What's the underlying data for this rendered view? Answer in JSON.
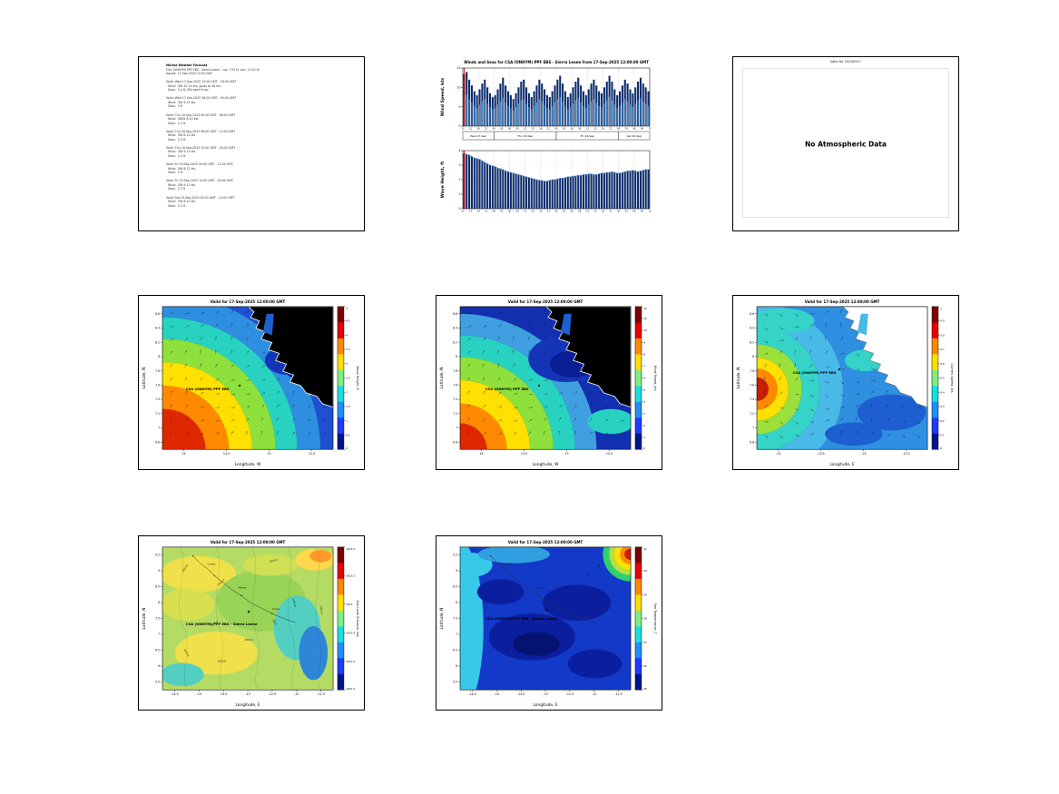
{
  "report": {
    "background": "#ffffff"
  },
  "colors": {
    "now_line": "#cc0000",
    "bar_dark": "#0a2a6b",
    "bar_light": "#4f9bd8",
    "wave_top": "#5b9bd5",
    "land": "#000000"
  },
  "forecast_text": {
    "lines": [
      "Marine Weather Forecast",
      "CSA (ONHYM) PPF EBS - Sierra Leone   Lat: 7.55 N  Lon: 13.10 W",
      "Issued: 17-Sep-2025 12:00 GMT",
      "",
      "Valid: Wed 17-Sep-2025 12:00 GMT - 18:00 GMT",
      "  Wind:  SW 10-14 kts, gusts to 18 kts",
      "  Seas:  3-4 ft, SW swell 9 sec",
      "",
      "Valid: Wed 17-Sep-2025 18:00 GMT - 00:00 GMT",
      "  Wind:  SW 9-13 kts",
      "  Seas:  3 ft",
      "",
      "Valid: Thu 18-Sep-2025 00:00 GMT - 06:00 GMT",
      "  Wind:  WSW 8-12 kts",
      "  Seas:  2-3 ft",
      "",
      "Valid: Thu 18-Sep-2025 06:00 GMT - 12:00 GMT",
      "  Wind:  SW 8-12 kts",
      "  Seas:  2-3 ft",
      "",
      "Valid: Thu 18-Sep-2025 12:00 GMT - 00:00 GMT",
      "  Wind:  SW 9-13 kts",
      "  Seas:  2-3 ft",
      "",
      "Valid: Fri 19-Sep-2025 00:00 GMT - 12:00 GMT",
      "  Wind:  SW 8-12 kts",
      "  Seas:  2 ft",
      "",
      "Valid: Fri 19-Sep-2025 12:00 GMT - 00:00 GMT",
      "  Wind:  SW 9-13 kts",
      "  Seas:  2-3 ft",
      "",
      "Valid: Sat 20-Sep-2025 00:00 GMT - 12:00 GMT",
      "  Wind:  SW 8-12 kts",
      "  Seas:  2-3 ft"
    ]
  },
  "no_data_panel": {
    "valid_label": "Valid for 20250917",
    "message": "No Atmospheric Data"
  },
  "chart_data": [
    {
      "id": "wind_speed_series",
      "type": "bar",
      "title": "Winds and Seas for CSA (ONHYM) PPF EBS - Sierra Leone from 17-Sep-2025 12:00:00 GMT",
      "ylabel": "Wind Speed, kts",
      "ylim": [
        0,
        15
      ],
      "yticks": [
        0,
        5,
        10,
        15
      ],
      "day_labels": [
        "Wed 17-Sep",
        "Thu 18-Sep",
        "Fri 19-Sep",
        "Sat 20-Sep"
      ],
      "xticklabels": [
        "12",
        "15",
        "18",
        "21",
        "00",
        "03",
        "06",
        "09",
        "12",
        "15",
        "18",
        "21",
        "00",
        "03",
        "06",
        "09",
        "12",
        "15",
        "18",
        "21",
        "00",
        "03",
        "06",
        "09",
        "12"
      ],
      "values": [
        13.5,
        14,
        12,
        10.5,
        9,
        8,
        9.5,
        11,
        12,
        10,
        8.5,
        7.5,
        8,
        9.5,
        11,
        12.5,
        10.5,
        9,
        8,
        7,
        8.5,
        10,
        11.5,
        12,
        10,
        8.5,
        7.5,
        9,
        10.5,
        12,
        11,
        9.5,
        8,
        7.5,
        9,
        10.5,
        12,
        13,
        11,
        9,
        7.5,
        8.5,
        10,
        11.5,
        12.5,
        10.5,
        9,
        8,
        9.5,
        11,
        12,
        10.5,
        9,
        8.5,
        10,
        11.5,
        13,
        11.5,
        9.5,
        8,
        9,
        10.5,
        12,
        11,
        9.5,
        8.5,
        10,
        11.5,
        12.5,
        11,
        10,
        9
      ]
    },
    {
      "id": "wave_height_series",
      "type": "bar",
      "ylabel": "Wave Height, ft",
      "ylim": [
        0,
        4
      ],
      "yticks": [
        0,
        1,
        2,
        3,
        4
      ],
      "values": [
        3.8,
        3.75,
        3.7,
        3.6,
        3.5,
        3.45,
        3.4,
        3.3,
        3.2,
        3.1,
        3.0,
        2.95,
        2.9,
        2.8,
        2.75,
        2.7,
        2.6,
        2.55,
        2.5,
        2.45,
        2.4,
        2.35,
        2.3,
        2.25,
        2.2,
        2.15,
        2.1,
        2.05,
        2.0,
        1.95,
        1.95,
        1.9,
        1.9,
        1.95,
        2.0,
        2.0,
        2.05,
        2.1,
        2.1,
        2.15,
        2.2,
        2.2,
        2.25,
        2.25,
        2.3,
        2.3,
        2.35,
        2.35,
        2.4,
        2.4,
        2.35,
        2.35,
        2.4,
        2.45,
        2.45,
        2.5,
        2.5,
        2.55,
        2.5,
        2.45,
        2.45,
        2.5,
        2.55,
        2.6,
        2.6,
        2.65,
        2.6,
        2.55,
        2.6,
        2.65,
        2.7,
        2.7
      ]
    },
    {
      "id": "wave_height_map",
      "type": "heatmap",
      "title": "Valid for 17-Sep-2025 12:00:00 GMT",
      "xlabel": "Longitude, W",
      "ylabel": "Latitude, N",
      "xticks": [
        "14",
        "13.5",
        "13",
        "12.5"
      ],
      "yticks": [
        "6.8",
        "7",
        "7.2",
        "7.4",
        "7.6",
        "7.8",
        "8",
        "8.2",
        "8.4",
        "8.6"
      ],
      "zlabel": "Wave Height, ft",
      "zrange": [
        0,
        5
      ],
      "colorbar_ticks": [
        "0",
        "0.5",
        "1",
        "1.5",
        "2",
        "2.5",
        "3",
        "3.5",
        "4",
        "4.5",
        "5"
      ],
      "station": "CSA (ONHYM) PPF EBS",
      "pattern": "max ~4.5 ft in the southwest, decreasing to under 1 ft at the coast (northeast)"
    },
    {
      "id": "wind_speed_map",
      "type": "heatmap",
      "title": "Valid for 17-Sep-2025 12:00:00 GMT",
      "xlabel": "Longitude, W",
      "ylabel": "Latitude, N",
      "xticks": [
        "14",
        "13.5",
        "13",
        "12.5"
      ],
      "yticks": [
        "6.8",
        "7",
        "7.2",
        "7.4",
        "7.6",
        "7.8",
        "8",
        "8.2",
        "8.4",
        "8.6"
      ],
      "zlabel": "Wind Speed, kts",
      "zrange": [
        0,
        12
      ],
      "colorbar_ticks": [
        "0",
        "1",
        "2",
        "3",
        "4",
        "5",
        "6",
        "7",
        "8",
        "9",
        "10",
        "11",
        "12"
      ],
      "station": "CSA (ONHYM) PPF EBS",
      "pattern": "strongest winds ~11 kts offshore southwest, light ~2 kts near the coast"
    },
    {
      "id": "current_speed_map",
      "type": "heatmap",
      "title": "Valid for 17-Sep-2025 12:00:00 GMT",
      "xlabel": "Longitude, E",
      "ylabel": "Latitude, N",
      "xticks": [
        "-14",
        "-13.5",
        "-13",
        "-12.5"
      ],
      "yticks": [
        "6.8",
        "7",
        "7.2",
        "7.4",
        "7.6",
        "7.8",
        "8",
        "8.2",
        "8.4",
        "8.6"
      ],
      "zlabel": "Current Speed, kts",
      "zrange": [
        0,
        1
      ],
      "colorbar_ticks": [
        "0",
        "0.1",
        "0.2",
        "0.3",
        "0.4",
        "0.5",
        "0.6",
        "0.7",
        "0.8",
        "0.9",
        "1"
      ],
      "station": "CSA (ONHYM) PPF EBS",
      "pattern": "localized maximum ~0.9 kts at the western edge, 0.1-0.4 kts elsewhere"
    },
    {
      "id": "sea_level_pressure_map",
      "type": "heatmap",
      "title": "Valid for 17-Sep-2025 12:00:00 GMT",
      "xlabel": "Longitude, E",
      "ylabel": "Latitude, N",
      "xticks": [
        "-14.5",
        "-14",
        "-13.5",
        "-13",
        "-12.5",
        "-12",
        "-11.5"
      ],
      "yticks": [
        "5.5",
        "6",
        "6.5",
        "7",
        "7.5",
        "8",
        "8.5",
        "9",
        "9.5"
      ],
      "zlabel": "Sea Level Pressure, mb",
      "zrange": [
        1012.4,
        1013.4
      ],
      "colorbar_ticks": [
        "1012.4",
        "1012.6",
        "1012.8",
        "1013",
        "1013.2",
        "1013.4"
      ],
      "contour_labels": [
        "1012.8",
        "1013",
        "1013.2",
        "1013.4",
        "1013.6",
        "1013.8"
      ],
      "station": "CSA (ONHYM) PPF EBS - Sierra Leone",
      "pattern": "broad 1013.0-1013.4 mb field, lower pressure trough on the eastern side"
    },
    {
      "id": "sea_temperature_map",
      "type": "heatmap",
      "title": "Valid for 17-Sep-2025 12:00:00 GMT",
      "xlabel": "Longitude, E",
      "ylabel": "Latitude, N",
      "xticks": [
        "-14.5",
        "-14",
        "-13.5",
        "-13",
        "-12.5",
        "-12",
        "-11.5"
      ],
      "yticks": [
        "5.5",
        "6",
        "6.5",
        "7",
        "7.5",
        "8",
        "8.5",
        "9",
        "9.5"
      ],
      "zlabel": "Sea Temperature, C",
      "zrange": [
        25,
        31
      ],
      "colorbar_ticks": [
        "25",
        "26",
        "27",
        "28",
        "29",
        "30",
        "31"
      ],
      "contour_labels": [
        "26",
        "27",
        "28"
      ],
      "station": "CSA (ONHYM) PPF EBS - Sierra Leone",
      "pattern": "mostly 25-26 C offshore, warming to ~30 C in the far northeast corner"
    }
  ]
}
